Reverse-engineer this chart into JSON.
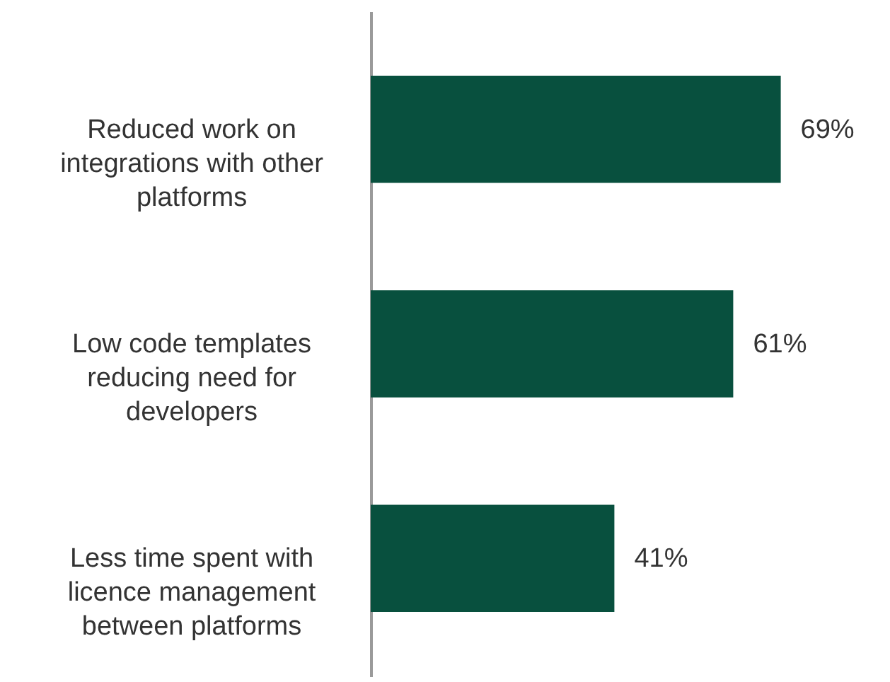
{
  "chart_data": {
    "type": "bar",
    "orientation": "horizontal",
    "categories": [
      "Reduced work on integrations with other platforms",
      "Low code templates reducing need for developers",
      "Less time spent with licence management between platforms"
    ],
    "values": [
      69,
      61,
      41
    ],
    "value_labels": [
      "69%",
      "61%",
      "41%"
    ],
    "color": "#08503e"
  }
}
